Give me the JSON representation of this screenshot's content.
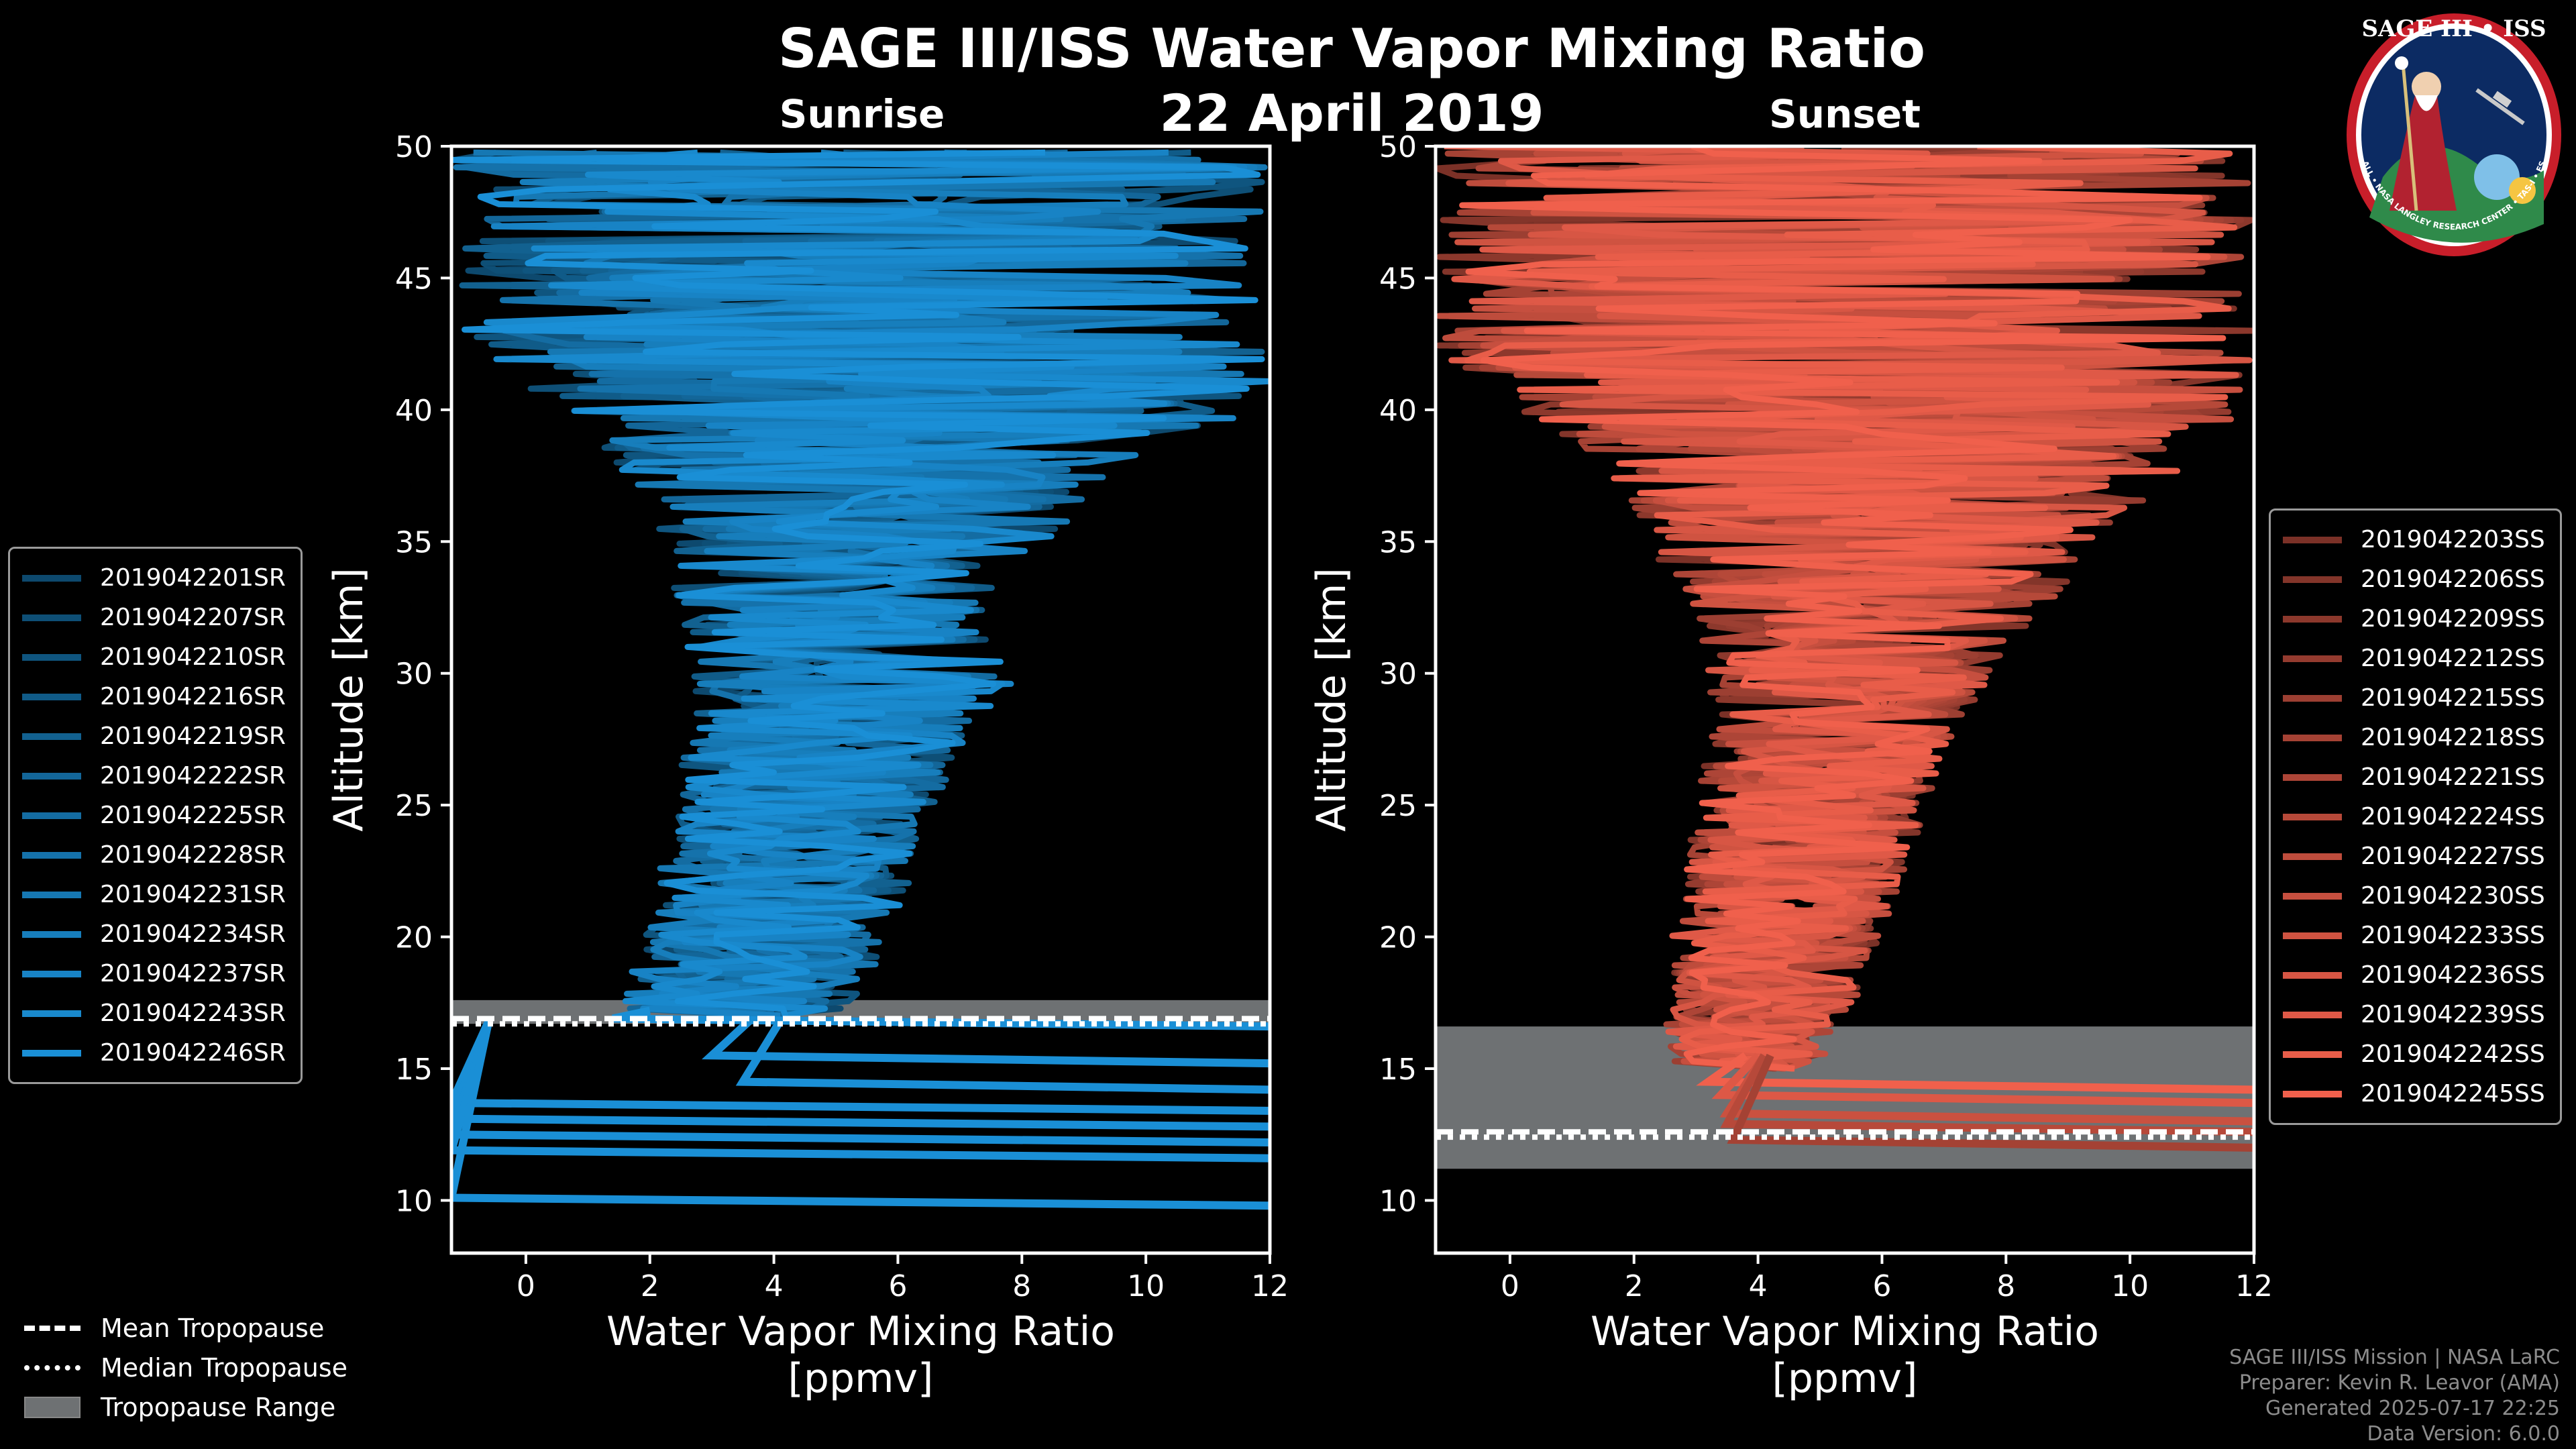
{
  "title": "SAGE III/ISS Water Vapor Mixing Ratio",
  "date": "22 April 2019",
  "colors": {
    "sunrise": "#1a8fd6",
    "sunset": "#f0604c",
    "tropo": "#6e7173",
    "background": "#000000"
  },
  "panels": [
    {
      "id": "sunrise",
      "subtitle": "Sunrise",
      "xlabel": "Water Vapor Mixing Ratio",
      "xunit": "[ppmv]",
      "ylabel": "Altitude [km]"
    },
    {
      "id": "sunset",
      "subtitle": "Sunset",
      "xlabel": "Water Vapor Mixing Ratio",
      "xunit": "[ppmv]",
      "ylabel": "Altitude [km]"
    }
  ],
  "chart_data": [
    {
      "type": "line",
      "title": "Sunrise",
      "xlabel": "Water Vapor Mixing Ratio [ppmv]",
      "ylabel": "Altitude [km]",
      "xlim": [
        -1.2,
        12
      ],
      "ylim": [
        8,
        50
      ],
      "xticks": [
        0,
        2,
        4,
        6,
        8,
        10,
        12
      ],
      "yticks": [
        10,
        15,
        20,
        25,
        30,
        35,
        40,
        45,
        50
      ],
      "series": [
        "2019042201SR",
        "2019042207SR",
        "2019042210SR",
        "2019042216SR",
        "2019042219SR",
        "2019042222SR",
        "2019042225SR",
        "2019042228SR",
        "2019042231SR",
        "2019042234SR",
        "2019042237SR",
        "2019042243SR",
        "2019042246SR"
      ],
      "envelope": {
        "altitude": [
          17,
          18,
          20,
          22,
          25,
          28,
          30,
          32,
          35,
          38,
          40,
          42,
          45,
          48,
          50
        ],
        "min": [
          1.5,
          1.6,
          1.9,
          2.1,
          2.4,
          2.6,
          2.7,
          2.5,
          2.0,
          1.4,
          0.5,
          -1.0,
          -1.2,
          -1.2,
          -1.2
        ],
        "max": [
          5.0,
          5.5,
          5.8,
          6.2,
          6.6,
          7.2,
          8.0,
          7.2,
          8.5,
          9.5,
          12.0,
          12.0,
          12.0,
          12.0,
          12.0
        ]
      },
      "lower_profiles": [
        {
          "altitude": 16.6,
          "from": 1.4,
          "to": 12
        },
        {
          "altitude": 15.2,
          "from": 3.0,
          "to": 12
        },
        {
          "altitude": 14.2,
          "from": 3.5,
          "to": 12
        },
        {
          "altitude": 13.4,
          "from": -1.2,
          "to": 12
        },
        {
          "altitude": 12.8,
          "from": -1.2,
          "to": 12
        },
        {
          "altitude": 12.2,
          "from": -1.2,
          "to": 12
        },
        {
          "altitude": 11.6,
          "from": -1.2,
          "to": 12
        },
        {
          "altitude": 9.8,
          "from": -1.2,
          "to": 12
        }
      ],
      "tropopause": {
        "range": [
          16.7,
          17.6
        ],
        "mean": 16.9,
        "median": 16.7
      }
    },
    {
      "type": "line",
      "title": "Sunset",
      "xlabel": "Water Vapor Mixing Ratio [ppmv]",
      "ylabel": "Altitude [km]",
      "xlim": [
        -1.2,
        12
      ],
      "ylim": [
        8,
        50
      ],
      "xticks": [
        0,
        2,
        4,
        6,
        8,
        10,
        12
      ],
      "yticks": [
        10,
        15,
        20,
        25,
        30,
        35,
        40,
        45,
        50
      ],
      "series": [
        "2019042203SS",
        "2019042206SS",
        "2019042209SS",
        "2019042212SS",
        "2019042215SS",
        "2019042218SS",
        "2019042221SS",
        "2019042224SS",
        "2019042227SS",
        "2019042230SS",
        "2019042233SS",
        "2019042236SS",
        "2019042239SS",
        "2019042242SS",
        "2019042245SS"
      ],
      "envelope": {
        "altitude": [
          15,
          17,
          20,
          22,
          25,
          28,
          30,
          32,
          35,
          38,
          40,
          42,
          45,
          48,
          50
        ],
        "min": [
          2.6,
          2.5,
          2.6,
          2.8,
          3.0,
          3.2,
          3.2,
          3.0,
          2.2,
          1.5,
          0.0,
          -1.2,
          -1.2,
          -1.2,
          -1.2
        ],
        "max": [
          5.0,
          5.5,
          6.0,
          6.3,
          6.8,
          7.2,
          7.8,
          8.5,
          9.5,
          11.0,
          12.0,
          12.0,
          12.0,
          12.0,
          12.0
        ]
      },
      "lower_profiles": [
        {
          "altitude": 14.2,
          "from": 3.2,
          "to": 12
        },
        {
          "altitude": 13.7,
          "from": 3.4,
          "to": 12
        },
        {
          "altitude": 13.0,
          "from": 3.5,
          "to": 12
        },
        {
          "altitude": 12.6,
          "from": 3.5,
          "to": 12
        },
        {
          "altitude": 12.0,
          "from": 3.6,
          "to": 12
        }
      ],
      "tropopause": {
        "range": [
          11.2,
          16.6
        ],
        "mean": 12.6,
        "median": 12.4
      }
    }
  ],
  "bottom_legend": {
    "mean": "Mean Tropopause",
    "median": "Median Tropopause",
    "range": "Tropopause Range"
  },
  "credits": {
    "line1": "SAGE III/ISS Mission | NASA LaRC",
    "line2": "Preparer: Kevin R. Leavor (AMA)",
    "line3": "Generated 2025-07-17 22:25",
    "line4": "Data Version: 6.0.0"
  },
  "logo": {
    "text": "SAGE III • ISS",
    "ring_text": "BALL • NASA LANGLEY RESEARCH CENTER • TAS-I • ESA"
  }
}
